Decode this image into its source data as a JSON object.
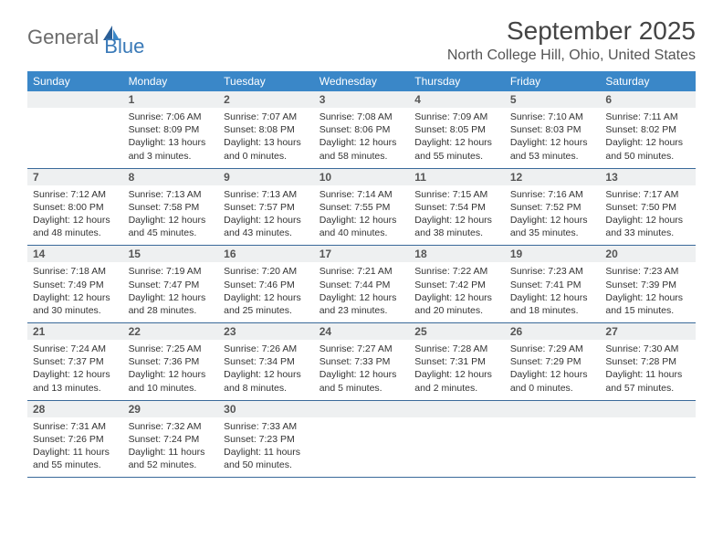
{
  "logo": {
    "part1": "General",
    "part2": "Blue"
  },
  "title": "September 2025",
  "location": "North College Hill, Ohio, United States",
  "colors": {
    "header_bg": "#3a87c8",
    "header_text": "#ffffff",
    "daynum_bg": "#eef0f1",
    "week_border": "#3a6a9a",
    "logo_gray": "#6b6b6b",
    "logo_blue": "#3a7ab8"
  },
  "dayNames": [
    "Sunday",
    "Monday",
    "Tuesday",
    "Wednesday",
    "Thursday",
    "Friday",
    "Saturday"
  ],
  "weeks": [
    [
      {
        "day": "",
        "sunrise": "",
        "sunset": "",
        "daylight": ""
      },
      {
        "day": "1",
        "sunrise": "Sunrise: 7:06 AM",
        "sunset": "Sunset: 8:09 PM",
        "daylight": "Daylight: 13 hours and 3 minutes."
      },
      {
        "day": "2",
        "sunrise": "Sunrise: 7:07 AM",
        "sunset": "Sunset: 8:08 PM",
        "daylight": "Daylight: 13 hours and 0 minutes."
      },
      {
        "day": "3",
        "sunrise": "Sunrise: 7:08 AM",
        "sunset": "Sunset: 8:06 PM",
        "daylight": "Daylight: 12 hours and 58 minutes."
      },
      {
        "day": "4",
        "sunrise": "Sunrise: 7:09 AM",
        "sunset": "Sunset: 8:05 PM",
        "daylight": "Daylight: 12 hours and 55 minutes."
      },
      {
        "day": "5",
        "sunrise": "Sunrise: 7:10 AM",
        "sunset": "Sunset: 8:03 PM",
        "daylight": "Daylight: 12 hours and 53 minutes."
      },
      {
        "day": "6",
        "sunrise": "Sunrise: 7:11 AM",
        "sunset": "Sunset: 8:02 PM",
        "daylight": "Daylight: 12 hours and 50 minutes."
      }
    ],
    [
      {
        "day": "7",
        "sunrise": "Sunrise: 7:12 AM",
        "sunset": "Sunset: 8:00 PM",
        "daylight": "Daylight: 12 hours and 48 minutes."
      },
      {
        "day": "8",
        "sunrise": "Sunrise: 7:13 AM",
        "sunset": "Sunset: 7:58 PM",
        "daylight": "Daylight: 12 hours and 45 minutes."
      },
      {
        "day": "9",
        "sunrise": "Sunrise: 7:13 AM",
        "sunset": "Sunset: 7:57 PM",
        "daylight": "Daylight: 12 hours and 43 minutes."
      },
      {
        "day": "10",
        "sunrise": "Sunrise: 7:14 AM",
        "sunset": "Sunset: 7:55 PM",
        "daylight": "Daylight: 12 hours and 40 minutes."
      },
      {
        "day": "11",
        "sunrise": "Sunrise: 7:15 AM",
        "sunset": "Sunset: 7:54 PM",
        "daylight": "Daylight: 12 hours and 38 minutes."
      },
      {
        "day": "12",
        "sunrise": "Sunrise: 7:16 AM",
        "sunset": "Sunset: 7:52 PM",
        "daylight": "Daylight: 12 hours and 35 minutes."
      },
      {
        "day": "13",
        "sunrise": "Sunrise: 7:17 AM",
        "sunset": "Sunset: 7:50 PM",
        "daylight": "Daylight: 12 hours and 33 minutes."
      }
    ],
    [
      {
        "day": "14",
        "sunrise": "Sunrise: 7:18 AM",
        "sunset": "Sunset: 7:49 PM",
        "daylight": "Daylight: 12 hours and 30 minutes."
      },
      {
        "day": "15",
        "sunrise": "Sunrise: 7:19 AM",
        "sunset": "Sunset: 7:47 PM",
        "daylight": "Daylight: 12 hours and 28 minutes."
      },
      {
        "day": "16",
        "sunrise": "Sunrise: 7:20 AM",
        "sunset": "Sunset: 7:46 PM",
        "daylight": "Daylight: 12 hours and 25 minutes."
      },
      {
        "day": "17",
        "sunrise": "Sunrise: 7:21 AM",
        "sunset": "Sunset: 7:44 PM",
        "daylight": "Daylight: 12 hours and 23 minutes."
      },
      {
        "day": "18",
        "sunrise": "Sunrise: 7:22 AM",
        "sunset": "Sunset: 7:42 PM",
        "daylight": "Daylight: 12 hours and 20 minutes."
      },
      {
        "day": "19",
        "sunrise": "Sunrise: 7:23 AM",
        "sunset": "Sunset: 7:41 PM",
        "daylight": "Daylight: 12 hours and 18 minutes."
      },
      {
        "day": "20",
        "sunrise": "Sunrise: 7:23 AM",
        "sunset": "Sunset: 7:39 PM",
        "daylight": "Daylight: 12 hours and 15 minutes."
      }
    ],
    [
      {
        "day": "21",
        "sunrise": "Sunrise: 7:24 AM",
        "sunset": "Sunset: 7:37 PM",
        "daylight": "Daylight: 12 hours and 13 minutes."
      },
      {
        "day": "22",
        "sunrise": "Sunrise: 7:25 AM",
        "sunset": "Sunset: 7:36 PM",
        "daylight": "Daylight: 12 hours and 10 minutes."
      },
      {
        "day": "23",
        "sunrise": "Sunrise: 7:26 AM",
        "sunset": "Sunset: 7:34 PM",
        "daylight": "Daylight: 12 hours and 8 minutes."
      },
      {
        "day": "24",
        "sunrise": "Sunrise: 7:27 AM",
        "sunset": "Sunset: 7:33 PM",
        "daylight": "Daylight: 12 hours and 5 minutes."
      },
      {
        "day": "25",
        "sunrise": "Sunrise: 7:28 AM",
        "sunset": "Sunset: 7:31 PM",
        "daylight": "Daylight: 12 hours and 2 minutes."
      },
      {
        "day": "26",
        "sunrise": "Sunrise: 7:29 AM",
        "sunset": "Sunset: 7:29 PM",
        "daylight": "Daylight: 12 hours and 0 minutes."
      },
      {
        "day": "27",
        "sunrise": "Sunrise: 7:30 AM",
        "sunset": "Sunset: 7:28 PM",
        "daylight": "Daylight: 11 hours and 57 minutes."
      }
    ],
    [
      {
        "day": "28",
        "sunrise": "Sunrise: 7:31 AM",
        "sunset": "Sunset: 7:26 PM",
        "daylight": "Daylight: 11 hours and 55 minutes."
      },
      {
        "day": "29",
        "sunrise": "Sunrise: 7:32 AM",
        "sunset": "Sunset: 7:24 PM",
        "daylight": "Daylight: 11 hours and 52 minutes."
      },
      {
        "day": "30",
        "sunrise": "Sunrise: 7:33 AM",
        "sunset": "Sunset: 7:23 PM",
        "daylight": "Daylight: 11 hours and 50 minutes."
      },
      {
        "day": "",
        "sunrise": "",
        "sunset": "",
        "daylight": ""
      },
      {
        "day": "",
        "sunrise": "",
        "sunset": "",
        "daylight": ""
      },
      {
        "day": "",
        "sunrise": "",
        "sunset": "",
        "daylight": ""
      },
      {
        "day": "",
        "sunrise": "",
        "sunset": "",
        "daylight": ""
      }
    ]
  ]
}
